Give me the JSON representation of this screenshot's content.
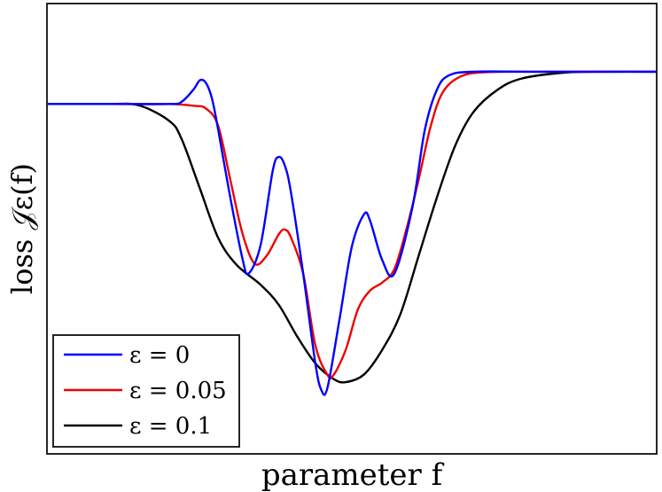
{
  "chart_data": {
    "type": "line",
    "title": "",
    "xlabel": "parameter f",
    "ylabel": "loss 𝒥ε(f)",
    "x_ticks": [],
    "y_ticks": [],
    "xlim": [
      0,
      100
    ],
    "ylim": [
      0,
      100
    ],
    "grid": false,
    "legend": {
      "placement": "bottom-left",
      "entries": [
        "ε = 0",
        "ε = 0.05",
        "ε = 0.1"
      ]
    },
    "series": [
      {
        "name": "ε = 0",
        "color": "#0000ff",
        "points": [
          [
            0,
            77.8
          ],
          [
            10,
            77.8
          ],
          [
            20,
            77.8
          ],
          [
            22,
            78.3
          ],
          [
            24,
            81.1
          ],
          [
            25,
            83.1
          ],
          [
            26,
            82.5
          ],
          [
            27,
            79.0
          ],
          [
            28,
            72.2
          ],
          [
            30,
            57.0
          ],
          [
            32,
            43.4
          ],
          [
            33,
            40.0
          ],
          [
            35,
            46.4
          ],
          [
            37,
            63.0
          ],
          [
            38,
            66.0
          ],
          [
            39,
            64.0
          ],
          [
            40,
            58.0
          ],
          [
            42,
            40.0
          ],
          [
            44,
            20.0
          ],
          [
            45,
            14.0
          ],
          [
            46,
            14.6
          ],
          [
            48,
            30.0
          ],
          [
            50,
            46.0
          ],
          [
            52,
            53.2
          ],
          [
            53,
            51.8
          ],
          [
            55,
            43.0
          ],
          [
            57,
            40.0
          ],
          [
            60,
            55.0
          ],
          [
            62,
            72.0
          ],
          [
            64,
            81.0
          ],
          [
            66,
            84.2
          ],
          [
            70,
            85.0
          ],
          [
            80,
            85.0
          ],
          [
            100,
            85.0
          ]
        ]
      },
      {
        "name": "ε = 0.05",
        "color": "#ee0000",
        "points": [
          [
            0,
            77.8
          ],
          [
            10,
            77.8
          ],
          [
            20,
            77.8
          ],
          [
            24,
            77.4
          ],
          [
            26,
            76.8
          ],
          [
            28,
            73.0
          ],
          [
            30,
            61.0
          ],
          [
            32,
            49.0
          ],
          [
            34,
            42.2
          ],
          [
            36,
            44.0
          ],
          [
            38,
            48.8
          ],
          [
            39,
            49.8
          ],
          [
            40,
            48.0
          ],
          [
            42,
            40.0
          ],
          [
            44,
            24.0
          ],
          [
            46,
            17.4
          ],
          [
            47,
            17.4
          ],
          [
            49,
            23.0
          ],
          [
            51,
            32.0
          ],
          [
            53,
            36.2
          ],
          [
            55,
            38.0
          ],
          [
            57,
            41.0
          ],
          [
            59,
            50.0
          ],
          [
            61,
            61.0
          ],
          [
            63,
            73.0
          ],
          [
            65,
            80.5
          ],
          [
            68,
            84.0
          ],
          [
            72,
            84.9
          ],
          [
            80,
            85.0
          ],
          [
            100,
            85.0
          ]
        ]
      },
      {
        "name": "ε = 0.1",
        "color": "#000000",
        "points": [
          [
            0,
            77.8
          ],
          [
            10,
            77.8
          ],
          [
            15,
            77.5
          ],
          [
            20,
            74.0
          ],
          [
            22,
            70.0
          ],
          [
            25,
            59.0
          ],
          [
            28,
            48.0
          ],
          [
            31,
            42.0
          ],
          [
            35,
            37.5
          ],
          [
            38,
            33.0
          ],
          [
            41,
            26.0
          ],
          [
            44,
            20.0
          ],
          [
            47,
            16.5
          ],
          [
            49,
            15.8
          ],
          [
            52,
            17.5
          ],
          [
            55,
            23.0
          ],
          [
            58,
            31.0
          ],
          [
            61,
            44.0
          ],
          [
            64,
            57.0
          ],
          [
            67,
            68.5
          ],
          [
            70,
            76.0
          ],
          [
            74,
            81.0
          ],
          [
            78,
            83.5
          ],
          [
            85,
            84.8
          ],
          [
            92,
            85.0
          ],
          [
            100,
            85.0
          ]
        ]
      }
    ]
  }
}
